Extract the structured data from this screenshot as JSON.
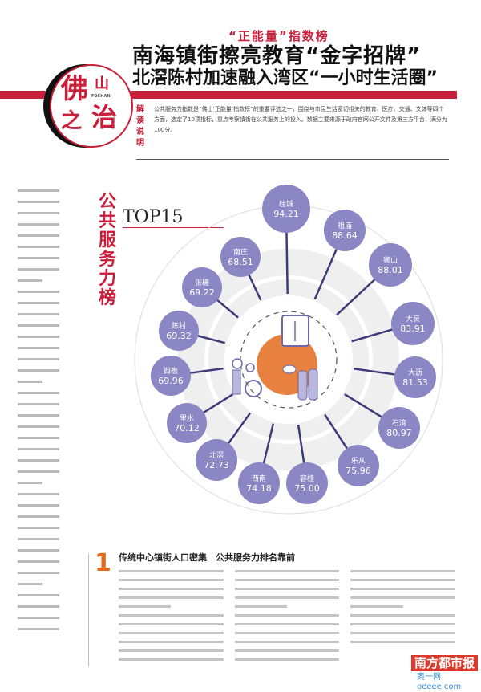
{
  "header": {
    "kicker": "“正能量”指数榜",
    "title_line1": "南海镇街擦亮教育“金字招牌”",
    "title_line2": "北滘陈村加速融入湾区“一小时生活圈”",
    "logo": {
      "chars": [
        "佛",
        "山",
        "之",
        "治"
      ],
      "latin": "FOSHAN"
    },
    "explain_label": [
      "解",
      "读",
      "说",
      "明"
    ],
    "explain_text": "公共服务力指数是“佛山‘正能量’指数榜”的重要评选之一，围绕与市民生活密切相关的教育、医疗、交通、文体等四个方面，选定了10项指标，重点考察镇街在公共服务上的投入。数据主要来源于政府官网公开文件及第三方平台，满分为100分。"
  },
  "section_title": "公共服务力榜",
  "top_label": "TOP15",
  "colors": {
    "accent_red": "#c8203a",
    "bubble": "#8a87c4",
    "spoke": "#3d3a78",
    "center": "#e8813f",
    "ring": "#efefef"
  },
  "chart_data": {
    "type": "table",
    "title": "TOP15",
    "rows": [
      {
        "name": "桂城",
        "score": "94.21"
      },
      {
        "name": "祖庙",
        "score": "88.64"
      },
      {
        "name": "狮山",
        "score": "88.01"
      },
      {
        "name": "大良",
        "score": "83.91"
      },
      {
        "name": "大沥",
        "score": "81.53"
      },
      {
        "name": "石湾",
        "score": "80.97"
      },
      {
        "name": "乐从",
        "score": "75.96"
      },
      {
        "name": "容桂",
        "score": "75.00"
      },
      {
        "name": "西南",
        "score": "74.18"
      },
      {
        "name": "北滘",
        "score": "72.73"
      },
      {
        "name": "里水",
        "score": "70.12"
      },
      {
        "name": "西樵",
        "score": "69.96"
      },
      {
        "name": "陈村",
        "score": "69.32"
      },
      {
        "name": "张槎",
        "score": "69.22"
      },
      {
        "name": "南庄",
        "score": "68.51"
      }
    ]
  },
  "article": {
    "section_number": "1",
    "heading": "传统中心镇街人口密集　公共服务力排名靠前"
  },
  "watermark": {
    "brand": "南方都市报",
    "site": "奥一网 oeeee.com"
  }
}
